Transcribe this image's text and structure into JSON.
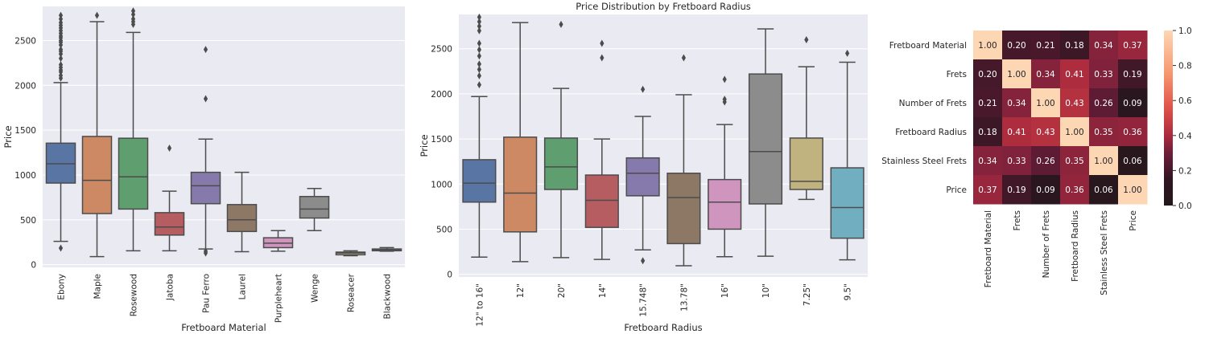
{
  "charts": [
    {
      "type": "box",
      "title": "",
      "xlabel": "Fretboard Material",
      "ylabel": "Price",
      "ylim": [
        -30,
        2880
      ],
      "yticks": [
        0,
        500,
        1000,
        1500,
        2000,
        2500
      ],
      "categories": [
        {
          "name": "Ebony",
          "color": "#5975a4",
          "min": 260,
          "q1": 910,
          "median": 1125,
          "q3": 1355,
          "max": 2030,
          "outliers": [
            185,
            2080,
            2110,
            2150,
            2170,
            2200,
            2230,
            2300,
            2350,
            2380,
            2400,
            2450,
            2480,
            2500,
            2530,
            2550,
            2580,
            2610,
            2640,
            2670,
            2700,
            2740,
            2780
          ]
        },
        {
          "name": "Maple",
          "color": "#cc8963",
          "min": 90,
          "q1": 570,
          "median": 940,
          "q3": 1430,
          "max": 2710,
          "outliers": [
            2780
          ]
        },
        {
          "name": "Rosewood",
          "color": "#5f9e6e",
          "min": 155,
          "q1": 620,
          "median": 980,
          "q3": 1410,
          "max": 2590,
          "outliers": [
            2680,
            2710,
            2740,
            2790,
            2830
          ]
        },
        {
          "name": "Jatoba",
          "color": "#b55d60",
          "min": 155,
          "q1": 330,
          "median": 420,
          "q3": 580,
          "max": 820,
          "outliers": [
            1300
          ]
        },
        {
          "name": "Pau Ferro",
          "color": "#857aab",
          "min": 175,
          "q1": 680,
          "median": 880,
          "q3": 1030,
          "max": 1400,
          "outliers": [
            130,
            150,
            1850,
            2400
          ]
        },
        {
          "name": "Laurel",
          "color": "#8d7866",
          "min": 145,
          "q1": 370,
          "median": 500,
          "q3": 670,
          "max": 1030,
          "outliers": []
        },
        {
          "name": "Purpleheart",
          "color": "#d095bf",
          "min": 150,
          "q1": 190,
          "median": 240,
          "q3": 300,
          "max": 380,
          "outliers": []
        },
        {
          "name": "Wenge",
          "color": "#8c8c8c",
          "min": 380,
          "q1": 520,
          "median": 620,
          "q3": 760,
          "max": 850,
          "outliers": []
        },
        {
          "name": "Roseacer",
          "color": "#c1b37f",
          "min": 100,
          "q1": 110,
          "median": 130,
          "q3": 140,
          "max": 155,
          "outliers": []
        },
        {
          "name": "Blackwood",
          "color": "#71aec0",
          "min": 150,
          "q1": 155,
          "median": 165,
          "q3": 175,
          "max": 190,
          "outliers": []
        }
      ]
    },
    {
      "type": "box",
      "title": "Price Distribution by Fretboard Radius",
      "xlabel": "Fretboard Radius",
      "ylabel": "Price",
      "ylim": [
        -30,
        2880
      ],
      "yticks": [
        0,
        500,
        1000,
        1500,
        2000,
        2500
      ],
      "categories": [
        {
          "name": "12\" to 16\"",
          "color": "#5975a4",
          "min": 190,
          "q1": 800,
          "median": 1010,
          "q3": 1270,
          "max": 1970,
          "outliers": [
            2100,
            2200,
            2270,
            2330,
            2420,
            2490,
            2560,
            2700,
            2750,
            2800,
            2850
          ]
        },
        {
          "name": "12\"",
          "color": "#cc8963",
          "min": 140,
          "q1": 470,
          "median": 900,
          "q3": 1520,
          "max": 2790,
          "outliers": []
        },
        {
          "name": "20\"",
          "color": "#5f9e6e",
          "min": 185,
          "q1": 940,
          "median": 1190,
          "q3": 1510,
          "max": 2060,
          "outliers": [
            2770
          ]
        },
        {
          "name": "14\"",
          "color": "#b55d60",
          "min": 165,
          "q1": 520,
          "median": 820,
          "q3": 1100,
          "max": 1500,
          "outliers": [
            2400,
            2560
          ]
        },
        {
          "name": "15.748\"",
          "color": "#857aab",
          "min": 270,
          "q1": 870,
          "median": 1120,
          "q3": 1290,
          "max": 1750,
          "outliers": [
            150,
            2050
          ]
        },
        {
          "name": "13.78\"",
          "color": "#8d7866",
          "min": 95,
          "q1": 340,
          "median": 850,
          "q3": 1120,
          "max": 1990,
          "outliers": [
            2400
          ]
        },
        {
          "name": "16\"",
          "color": "#d095bf",
          "min": 195,
          "q1": 500,
          "median": 800,
          "q3": 1050,
          "max": 1660,
          "outliers": [
            1910,
            1940,
            2160
          ]
        },
        {
          "name": "10\"",
          "color": "#8c8c8c",
          "min": 200,
          "q1": 780,
          "median": 1360,
          "q3": 2220,
          "max": 2720,
          "outliers": []
        },
        {
          "name": "7.25\"",
          "color": "#c1b37f",
          "min": 830,
          "q1": 940,
          "median": 1030,
          "q3": 1510,
          "max": 2300,
          "outliers": [
            2600
          ]
        },
        {
          "name": "9.5\"",
          "color": "#71aec0",
          "min": 160,
          "q1": 400,
          "median": 740,
          "q3": 1180,
          "max": 2350,
          "outliers": [
            2450
          ]
        }
      ]
    },
    {
      "type": "heatmap",
      "title": "",
      "labels": [
        "Fretboard Material",
        "Frets",
        "Number of Frets",
        "Fretboard Radius",
        "Stainless Steel Frets",
        "Price"
      ],
      "values": [
        [
          1.0,
          0.2,
          0.21,
          0.18,
          0.34,
          0.37
        ],
        [
          0.2,
          1.0,
          0.34,
          0.41,
          0.33,
          0.19
        ],
        [
          0.21,
          0.34,
          1.0,
          0.43,
          0.26,
          0.09
        ],
        [
          0.18,
          0.41,
          0.43,
          1.0,
          0.35,
          0.36
        ],
        [
          0.34,
          0.33,
          0.26,
          0.35,
          1.0,
          0.06
        ],
        [
          0.37,
          0.19,
          0.09,
          0.36,
          0.06,
          1.0
        ]
      ],
      "colorbar_ticks": [
        0.0,
        0.2,
        0.4,
        0.6,
        0.8,
        1.0
      ],
      "colorbar_tick_labels": [
        "0.0",
        "0.2",
        "0.4",
        "0.6",
        "0.8",
        "1.0"
      ],
      "vmin": 0,
      "vmax": 1,
      "colormap": "icefire-center"
    }
  ]
}
